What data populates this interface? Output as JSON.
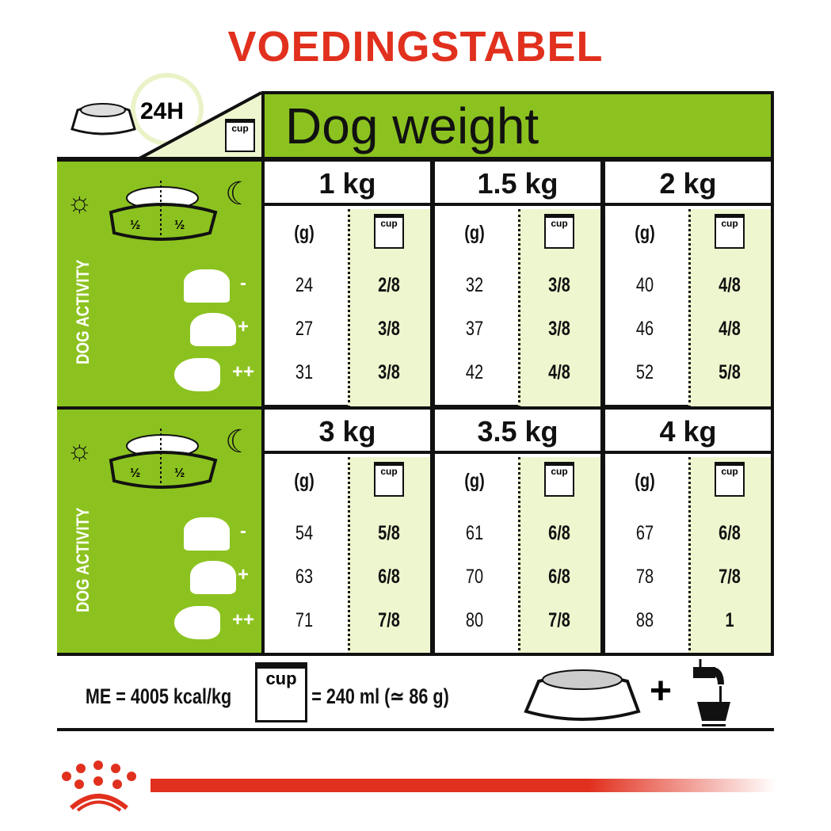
{
  "title": "VOEDINGSTABEL",
  "header": {
    "period": "24H",
    "cup_label": "cup",
    "dog_weight": "Dog weight"
  },
  "side": {
    "activity_label": "DOG ACTIVITY",
    "half_left": "½",
    "half_right": "½",
    "activity_levels": [
      "-",
      "+",
      "++"
    ]
  },
  "columns": {
    "grams": "(g)",
    "cup": "cup"
  },
  "sections": [
    {
      "weights": [
        {
          "label": "1 kg",
          "grams": [
            "24",
            "27",
            "31"
          ],
          "cups": [
            "2/8",
            "3/8",
            "3/8"
          ]
        },
        {
          "label": "1.5 kg",
          "grams": [
            "32",
            "37",
            "42"
          ],
          "cups": [
            "3/8",
            "3/8",
            "4/8"
          ]
        },
        {
          "label": "2 kg",
          "grams": [
            "40",
            "46",
            "52"
          ],
          "cups": [
            "4/8",
            "4/8",
            "5/8"
          ]
        }
      ]
    },
    {
      "weights": [
        {
          "label": "3 kg",
          "grams": [
            "54",
            "63",
            "71"
          ],
          "cups": [
            "5/8",
            "6/8",
            "7/8"
          ]
        },
        {
          "label": "3.5 kg",
          "grams": [
            "61",
            "70",
            "80"
          ],
          "cups": [
            "6/8",
            "6/8",
            "7/8"
          ]
        },
        {
          "label": "4 kg",
          "grams": [
            "67",
            "78",
            "88"
          ],
          "cups": [
            "6/8",
            "7/8",
            "1"
          ]
        }
      ]
    }
  ],
  "footer": {
    "energy": "ME = 4005 kcal/kg",
    "cup_label": "cup",
    "cup_equiv": "= 240 ml (≃ 86 g)",
    "plus": "+"
  },
  "colors": {
    "brand_red": "#e1301e",
    "green": "#8cc220",
    "light_green": "#eef6cf"
  }
}
